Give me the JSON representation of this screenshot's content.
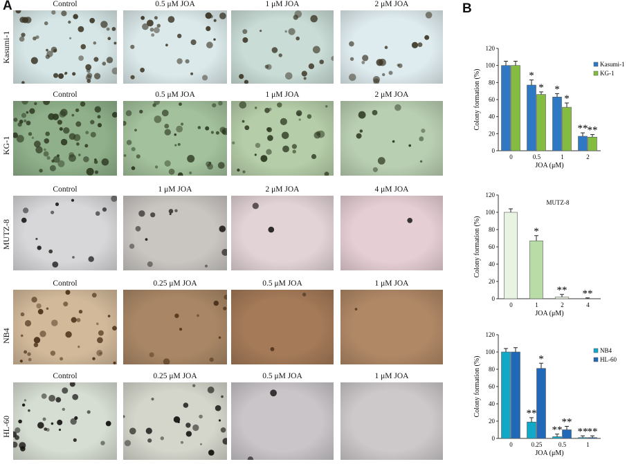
{
  "panel_a_label": "A",
  "panel_b_label": "B",
  "image_grid": [
    {
      "cell_line": "Kasumi-1",
      "conditions": [
        "Control",
        "0.5 μM JOA",
        "1 μM JOA",
        "2 μM JOA"
      ],
      "tones": [
        "#d6e6e6",
        "#dbe9ea",
        "#c9dcd6",
        "#dfecef"
      ],
      "colony_color": "#3a3424"
    },
    {
      "cell_line": "KG-1",
      "conditions": [
        "Control",
        "0.5 μM JOA",
        "1 μM JOA",
        "2 μM JOA"
      ],
      "tones": [
        "#8fb08a",
        "#a3c19c",
        "#b5cda8",
        "#b9cfb2"
      ],
      "colony_color": "#2e3a22"
    },
    {
      "cell_line": "MUTZ-8",
      "conditions": [
        "Control",
        "1 μM JOA",
        "2 μM JOA",
        "4 μM JOA"
      ],
      "tones": [
        "#d7d7d9",
        "#c9c6c2",
        "#e2d3d6",
        "#e6cfd4"
      ],
      "colony_color": "#1d1a18"
    },
    {
      "cell_line": "NB4",
      "conditions": [
        "Control",
        "0.25 μM JOA",
        "0.5 μM JOA",
        "1 μM JOA"
      ],
      "tones": [
        "#d2b99a",
        "#a98766",
        "#a47a58",
        "#b08866"
      ],
      "colony_color": "#4a3018"
    },
    {
      "cell_line": "HL-60",
      "conditions": [
        "Control",
        "0.25 μM JOA",
        "0.5 μM JOA",
        "1 μM JOA"
      ],
      "tones": [
        "#d6ddd2",
        "#d4d6cc",
        "#c9c5c9",
        "#cdc9cb"
      ],
      "colony_color": "#141210"
    }
  ],
  "chart_data": [
    {
      "type": "bar",
      "title": "",
      "xlabel": "JOA (μM)",
      "ylabel": "Colony formation (%)",
      "ylim": [
        0,
        120
      ],
      "yticks": [
        0,
        20,
        40,
        60,
        80,
        100,
        120
      ],
      "categories": [
        "0",
        "0.5",
        "1",
        "2"
      ],
      "legend_position": "top-right",
      "series": [
        {
          "name": "Kasumi-1",
          "color": "#2f78c4",
          "values": [
            100,
            77,
            63,
            17
          ],
          "errors": [
            5,
            6,
            4,
            4
          ],
          "marks": [
            "",
            "*",
            "*",
            "**"
          ]
        },
        {
          "name": "KG-1",
          "color": "#84bb41",
          "values": [
            100,
            66,
            51,
            16
          ],
          "errors": [
            5,
            3,
            5,
            3
          ],
          "marks": [
            "",
            "*",
            "*",
            "**"
          ]
        }
      ]
    },
    {
      "type": "bar",
      "title": "MUTZ-8",
      "xlabel": "JOA (μM)",
      "ylabel": "Colony formation (%)",
      "ylim": [
        0,
        120
      ],
      "yticks": [
        0,
        20,
        40,
        60,
        80,
        100,
        120
      ],
      "categories": [
        "0",
        "1",
        "2",
        "4"
      ],
      "legend_position": "none",
      "series": [
        {
          "name": "",
          "color": "#e2f0d9",
          "colors": [
            "#e8f3e1",
            "#b9dca6",
            "#e8f3e1",
            "#e8f3e1"
          ],
          "values": [
            100,
            67,
            2,
            0
          ],
          "errors": [
            4,
            6,
            3,
            1
          ],
          "marks": [
            "",
            "*",
            "**",
            "**"
          ]
        }
      ]
    },
    {
      "type": "bar",
      "title": "",
      "xlabel": "JOA (μM)",
      "ylabel": "Colony formation (%)",
      "ylim": [
        0,
        120
      ],
      "yticks": [
        0,
        20,
        40,
        60,
        80,
        100,
        120
      ],
      "categories": [
        "0",
        "0.25",
        "0.5",
        "1"
      ],
      "legend_position": "top-right",
      "series": [
        {
          "name": "NB4",
          "color": "#12a8c8",
          "values": [
            100,
            19,
            2,
            1
          ],
          "errors": [
            4,
            5,
            3,
            2
          ],
          "marks": [
            "",
            "**",
            "**",
            "**"
          ]
        },
        {
          "name": "HL-60",
          "color": "#2068b8",
          "values": [
            100,
            81,
            10,
            1
          ],
          "errors": [
            5,
            6,
            4,
            2
          ],
          "marks": [
            "",
            "*",
            "**",
            "**"
          ]
        }
      ]
    }
  ]
}
